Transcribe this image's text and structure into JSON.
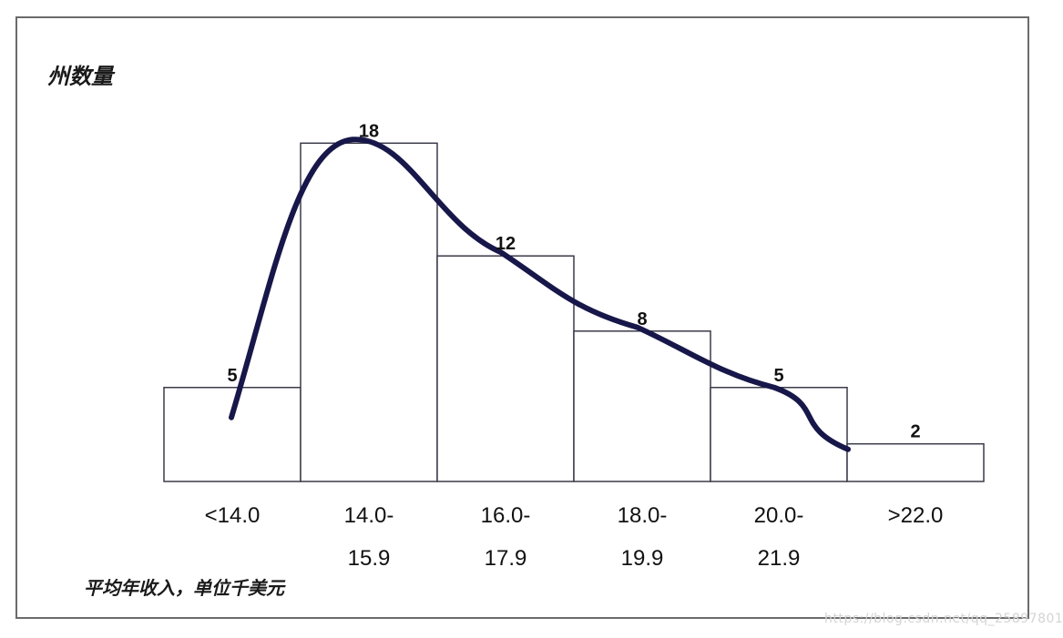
{
  "chart_data": {
    "type": "bar",
    "ylabel": "州数量",
    "xlabel": "平均年收入，单位千美元",
    "categories": [
      {
        "line1": "<14.0",
        "line2": ""
      },
      {
        "line1": "14.0-",
        "line2": "15.9"
      },
      {
        "line1": "16.0-",
        "line2": "17.9"
      },
      {
        "line1": "18.0-",
        "line2": "19.9"
      },
      {
        "line1": "20.0-",
        "line2": "21.9"
      },
      {
        "line1": ">22.0",
        "line2": ""
      }
    ],
    "values": [
      5,
      18,
      12,
      8,
      5,
      2
    ],
    "ylim": [
      0,
      19
    ],
    "grid": false,
    "legend": "none",
    "overlay": "smoothed frequency curve"
  },
  "watermark": "https://blog.csdn.net/qq_25897801",
  "colors": {
    "bar_fill": "#ffffff",
    "bar_stroke": "#3b3b4a",
    "curve": "#17174a",
    "frame": "#6b6b6b"
  }
}
